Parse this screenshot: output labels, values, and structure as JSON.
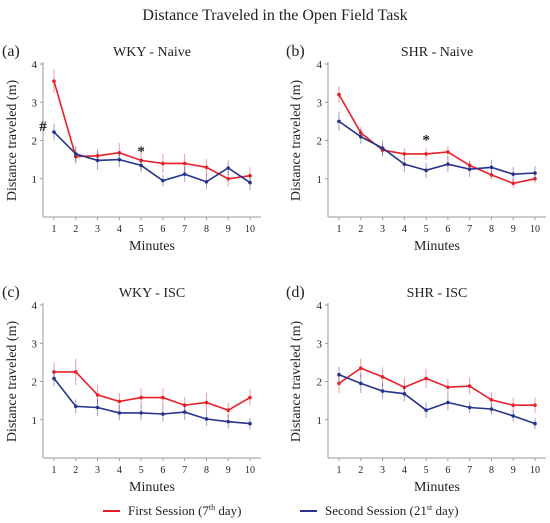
{
  "figure": {
    "title": "Distance Traveled in the Open Field Task"
  },
  "legend": {
    "placement": "bottom-center",
    "items": [
      {
        "prefix": "First Session  (7",
        "sup": "th",
        "suffix": " day)",
        "color": "#e8202a"
      },
      {
        "prefix": "Second Session  (21",
        "sup": "st",
        "suffix": " day)",
        "color": "#27348b"
      }
    ]
  },
  "colors": {
    "first": "#e8202a",
    "second": "#27348b",
    "axis": "#999999"
  },
  "chart_data": [
    {
      "type": "line",
      "panel_label": "(a)",
      "title": "WKY - Naive",
      "xlabel": "Minutes",
      "ylabel": "Distance traveled (m)",
      "ylim": [
        0,
        4
      ],
      "yticks": [
        1,
        2,
        3,
        4
      ],
      "x": [
        1,
        2,
        3,
        4,
        5,
        6,
        7,
        8,
        9,
        10
      ],
      "grid": false,
      "annotations": [
        {
          "text": "#",
          "x": 1,
          "y": 2.25
        },
        {
          "text": "*",
          "x": 5,
          "y": 1.6
        }
      ],
      "series": [
        {
          "values": [
            3.55,
            1.58,
            1.6,
            1.68,
            1.48,
            1.4,
            1.4,
            1.3,
            1.0,
            1.08
          ],
          "errors": [
            0.3,
            0.2,
            0.18,
            0.25,
            0.25,
            0.25,
            0.25,
            0.22,
            0.2,
            0.22
          ]
        },
        {
          "values": [
            2.22,
            1.65,
            1.48,
            1.5,
            1.35,
            0.95,
            1.12,
            0.92,
            1.28,
            0.9
          ],
          "errors": [
            0.22,
            0.2,
            0.25,
            0.2,
            0.18,
            0.15,
            0.2,
            0.2,
            0.2,
            0.2
          ]
        }
      ]
    },
    {
      "type": "line",
      "panel_label": "(b)",
      "title": "SHR - Naive",
      "xlabel": "Minutes",
      "ylabel": "Distance traveled (m)",
      "ylim": [
        0,
        4
      ],
      "yticks": [
        1,
        2,
        3,
        4
      ],
      "x": [
        1,
        2,
        3,
        4,
        5,
        6,
        7,
        8,
        9,
        10
      ],
      "grid": false,
      "annotations": [
        {
          "text": "*",
          "x": 5,
          "y": 1.9
        }
      ],
      "series": [
        {
          "values": [
            3.2,
            2.2,
            1.75,
            1.65,
            1.65,
            1.7,
            1.35,
            1.1,
            0.88,
            1.0
          ],
          "errors": [
            0.22,
            0.15,
            0.15,
            0.15,
            0.15,
            0.15,
            0.12,
            0.12,
            0.12,
            0.12
          ]
        },
        {
          "values": [
            2.5,
            2.1,
            1.8,
            1.38,
            1.22,
            1.38,
            1.25,
            1.3,
            1.12,
            1.15
          ],
          "errors": [
            0.25,
            0.2,
            0.2,
            0.2,
            0.2,
            0.2,
            0.2,
            0.2,
            0.18,
            0.18
          ]
        }
      ]
    },
    {
      "type": "line",
      "panel_label": "(c)",
      "title": "WKY - ISC",
      "xlabel": "Minutes",
      "ylabel": "Distance traveled (m)",
      "ylim": [
        0,
        4
      ],
      "yticks": [
        1,
        2,
        3,
        4
      ],
      "x": [
        1,
        2,
        3,
        4,
        5,
        6,
        7,
        8,
        9,
        10
      ],
      "grid": false,
      "annotations": [],
      "series": [
        {
          "values": [
            2.25,
            2.25,
            1.65,
            1.48,
            1.58,
            1.58,
            1.38,
            1.45,
            1.25,
            1.58
          ],
          "errors": [
            0.25,
            0.35,
            0.25,
            0.22,
            0.25,
            0.25,
            0.22,
            0.25,
            0.2,
            0.22
          ]
        },
        {
          "values": [
            2.08,
            1.35,
            1.32,
            1.18,
            1.18,
            1.15,
            1.2,
            1.02,
            0.95,
            0.9
          ],
          "errors": [
            0.2,
            0.18,
            0.22,
            0.2,
            0.2,
            0.2,
            0.2,
            0.18,
            0.18,
            0.15
          ]
        }
      ]
    },
    {
      "type": "line",
      "panel_label": "(d)",
      "title": "SHR - ISC",
      "xlabel": "Minutes",
      "ylabel": "Distance traveled (m)",
      "ylim": [
        0,
        4
      ],
      "yticks": [
        1,
        2,
        3,
        4
      ],
      "x": [
        1,
        2,
        3,
        4,
        5,
        6,
        7,
        8,
        9,
        10
      ],
      "grid": false,
      "annotations": [],
      "series": [
        {
          "values": [
            1.95,
            2.35,
            2.12,
            1.85,
            2.08,
            1.85,
            1.88,
            1.52,
            1.38,
            1.38
          ],
          "errors": [
            0.25,
            0.25,
            0.25,
            0.25,
            0.25,
            0.22,
            0.22,
            0.2,
            0.2,
            0.2
          ]
        },
        {
          "values": [
            2.18,
            1.95,
            1.75,
            1.68,
            1.25,
            1.45,
            1.32,
            1.28,
            1.1,
            0.9
          ],
          "errors": [
            0.2,
            0.25,
            0.2,
            0.2,
            0.2,
            0.2,
            0.15,
            0.15,
            0.15,
            0.15
          ]
        }
      ]
    }
  ]
}
